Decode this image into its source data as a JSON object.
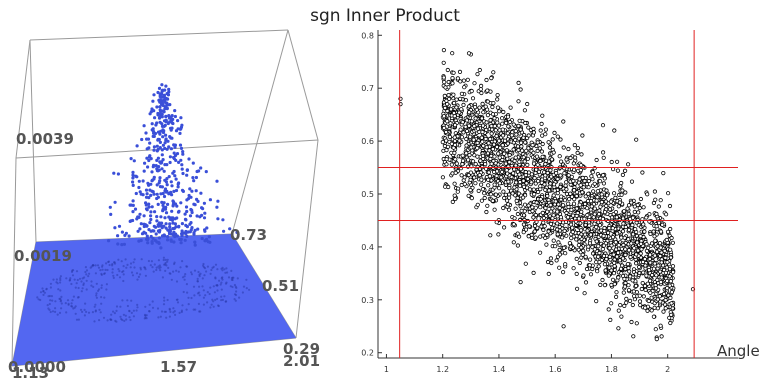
{
  "title": "sgn Inner Product",
  "chart_data": [
    {
      "type": "scatter",
      "dimensions": 3,
      "axis_ticks": {
        "x": [
          "1.13",
          "1.57",
          "2.01"
        ],
        "y": [
          "0.29",
          "0.51",
          "0.73"
        ],
        "z": [
          "0.0000",
          "0.0019",
          "0.0039"
        ]
      },
      "ranges": {
        "x": [
          1.13,
          2.01
        ],
        "y": [
          0.29,
          0.73
        ],
        "z": [
          0,
          0.0039
        ]
      },
      "colors": {
        "points": "#3a4fd8",
        "plane": "#4a5ff0",
        "box": "#9a9a9a"
      }
    },
    {
      "type": "scatter",
      "xlabel": "Angle",
      "ylabel": "",
      "xlim": [
        0.97,
        2.25
      ],
      "ylim": [
        0.19,
        0.81
      ],
      "xticks": [
        1,
        1.2,
        1.4,
        1.6,
        1.8,
        2
      ],
      "xtick_labels": [
        "1",
        "1.2",
        "1.4",
        "1.6",
        "1.8",
        "2"
      ],
      "yticks": [
        0.2,
        0.3,
        0.4,
        0.5,
        0.6,
        0.7,
        0.8
      ],
      "ytick_labels": [
        "0.2",
        "0.3",
        "0.4",
        "0.5",
        "0.6",
        "0.7",
        "0.8"
      ],
      "reference_lines": {
        "vertical_x": [
          1.047,
          2.094
        ],
        "horizontal_y": [
          0.45,
          0.55
        ]
      },
      "point_cloud": {
        "x_range": [
          1.05,
          2.09
        ],
        "y_range": [
          0.25,
          0.73
        ],
        "trend": "negative",
        "core_points": [
          [
            1.2,
            0.64
          ],
          [
            1.4,
            0.58
          ],
          [
            1.6,
            0.5
          ],
          [
            1.8,
            0.42
          ],
          [
            2.0,
            0.36
          ]
        ]
      },
      "sample_points": [
        [
          1.05,
          0.67
        ],
        [
          1.05,
          0.68
        ],
        [
          1.63,
          0.25
        ],
        [
          2.09,
          0.32
        ],
        [
          1.38,
          0.73
        ],
        [
          1.47,
          0.71
        ],
        [
          1.77,
          0.63
        ],
        [
          1.81,
          0.62
        ]
      ],
      "grid": false,
      "colors": {
        "points": "#000000",
        "lines": "#e02020"
      }
    }
  ]
}
